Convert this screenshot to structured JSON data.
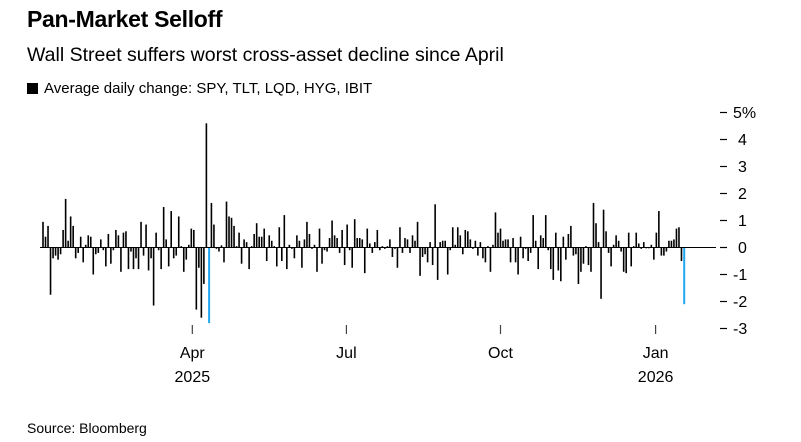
{
  "title": "Pan-Market Selloff",
  "subtitle": "Wall Street suffers worst cross-asset decline since April",
  "source": "Source: Bloomberg",
  "colors": {
    "bar": "#000000",
    "highlight": "#1fa8f0",
    "axis": "#000000"
  },
  "chart_data": {
    "type": "bar",
    "legend": [
      "Average daily change: SPY, TLT, LQD, HYG, IBIT"
    ],
    "ylabel": "%",
    "ylim": [
      -3,
      5
    ],
    "y_ticks": [
      {
        "v": 5,
        "label": "5%"
      },
      {
        "v": 4,
        "label": "4"
      },
      {
        "v": 3,
        "label": "3"
      },
      {
        "v": 2,
        "label": "2"
      },
      {
        "v": 1,
        "label": "1"
      },
      {
        "v": 0,
        "label": "0"
      },
      {
        "v": -1,
        "label": "-1"
      },
      {
        "v": -2,
        "label": "-2"
      },
      {
        "v": -3,
        "label": "-3"
      }
    ],
    "x_ticks": [
      {
        "label": "Apr",
        "year": "2025",
        "at_index": 59.4
      },
      {
        "label": "Jul",
        "year": "",
        "at_index": 120.7
      },
      {
        "label": "Oct",
        "year": "",
        "at_index": 182
      },
      {
        "label": "Jan",
        "year": "2026",
        "at_index": 243.7
      }
    ],
    "highlight_indices": [
      66,
      255
    ],
    "values": [
      0.95,
      0.4,
      0.8,
      -1.75,
      -0.4,
      -0.3,
      -0.45,
      -0.25,
      0.65,
      1.8,
      0.25,
      1.15,
      0.8,
      -0.4,
      -0.2,
      0.4,
      -0.55,
      0.1,
      0.45,
      0.4,
      -1.0,
      -0.25,
      -0.2,
      0.3,
      -0.1,
      -0.7,
      0.5,
      -0.6,
      -0.1,
      0.65,
      0.45,
      -0.9,
      0.55,
      0.6,
      -0.8,
      -0.15,
      -0.8,
      -0.4,
      -0.8,
      0.95,
      -0.3,
      0.85,
      -0.85,
      -0.4,
      -2.15,
      0.55,
      -0.1,
      -0.8,
      1.5,
      0.3,
      -0.7,
      1.35,
      -0.4,
      -0.3,
      1.15,
      0.05,
      -0.9,
      -0.45,
      0.1,
      0.7,
      0.65,
      -2.3,
      -0.75,
      -2.6,
      -1.35,
      4.6,
      -2.8,
      1.65,
      0.85,
      -0.05,
      -0.15,
      0.08,
      -0.55,
      1.7,
      1.15,
      1.1,
      0.8,
      0.05,
      0.55,
      -0.6,
      0.3,
      0.2,
      -0.8,
      0.05,
      0.5,
      0.9,
      0.4,
      0.4,
      0.7,
      -0.5,
      0.45,
      0.25,
      0.05,
      -0.7,
      0.75,
      -0.5,
      1.2,
      -0.8,
      0.1,
      -0.05,
      -0.4,
      0.45,
      0.25,
      -0.75,
      0.3,
      0.95,
      0.5,
      -0.05,
      0.1,
      -0.9,
      0.7,
      -0.6,
      -0.1,
      -0.15,
      0.35,
      1.0,
      0.45,
      0.35,
      -0.2,
      0.65,
      -0.65,
      0.85,
      -0.1,
      -0.75,
      1.05,
      0.35,
      0.35,
      0.3,
      -0.95,
      0.7,
      0.15,
      -0.2,
      0.2,
      0.65,
      -0.1,
      0.05,
      -0.05,
      0.05,
      0.3,
      -0.35,
      -0.05,
      -0.75,
      0.75,
      -0.2,
      0.35,
      0.3,
      -0.2,
      0.45,
      0.25,
      0.95,
      -1.05,
      -0.35,
      -0.25,
      -0.55,
      0.2,
      -0.65,
      1.6,
      -1.2,
      0.2,
      0.25,
      0.25,
      -1.0,
      -0.1,
      0.75,
      0.1,
      0.75,
      0.45,
      -0.25,
      0.65,
      0.6,
      0.3,
      -0.05,
      0.25,
      -0.3,
      0.2,
      -0.4,
      -0.55,
      0.05,
      -0.9,
      0.1,
      1.3,
      0.55,
      0.7,
      0.25,
      0.3,
      0.3,
      -0.55,
      0.35,
      -0.55,
      -1.0,
      0.4,
      -0.4,
      -0.05,
      -0.5,
      -0.2,
      1.2,
      0.25,
      -0.8,
      0.45,
      0.35,
      1.2,
      -0.1,
      -0.8,
      -1.2,
      0.55,
      -0.85,
      -1.25,
      0.4,
      -0.45,
      0.5,
      0.8,
      -0.3,
      -0.25,
      -1.35,
      -0.9,
      -0.6,
      0.05,
      -0.65,
      -0.9,
      1.65,
      0.9,
      0.2,
      -1.9,
      1.4,
      0.6,
      -0.2,
      -0.7,
      0.1,
      0.45,
      0.25,
      -0.15,
      -0.9,
      -0.95,
      0.55,
      -0.7,
      0.05,
      0.55,
      0.15,
      -0.05,
      0.2,
      -0.03,
      -0.03,
      0.1,
      -0.45,
      0.55,
      1.35,
      -0.3,
      -0.3,
      -0.15,
      0.25,
      0.25,
      0.3,
      0.7,
      0.75,
      -0.5,
      -2.1
    ]
  }
}
